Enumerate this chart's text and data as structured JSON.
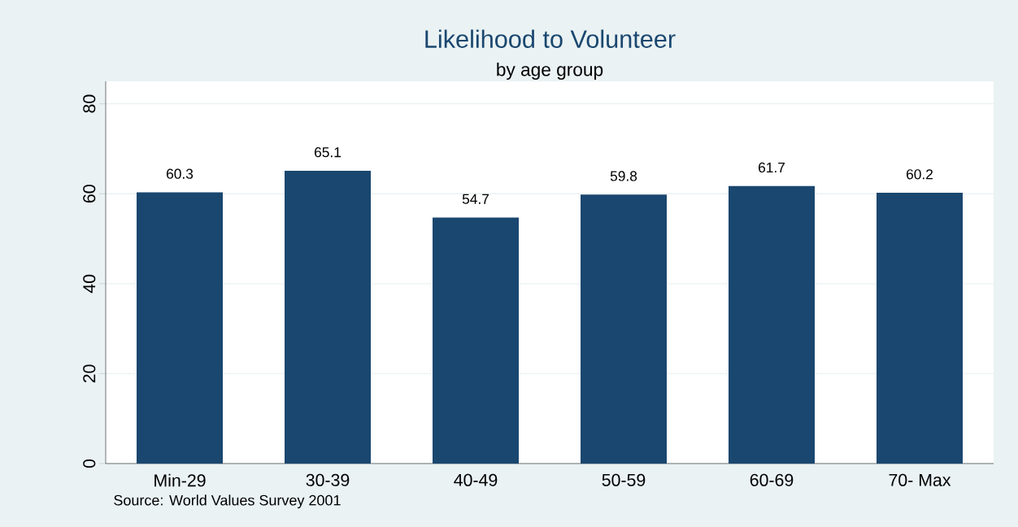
{
  "chart_data": {
    "type": "bar",
    "title": "Likelihood to Volunteer",
    "subtitle": "by age group",
    "categories": [
      "Min-29",
      "30-39",
      "40-49",
      "50-59",
      "60-69",
      "70- Max"
    ],
    "values": [
      60.3,
      65.1,
      54.7,
      59.8,
      61.7,
      60.2
    ],
    "color": "#1a476f",
    "ylim": [
      0,
      85
    ],
    "yticks": [
      0,
      20,
      40,
      60,
      80
    ],
    "grid": "y",
    "data_labels": true,
    "annotations": [
      "Source: World Values Survey 2001"
    ]
  }
}
